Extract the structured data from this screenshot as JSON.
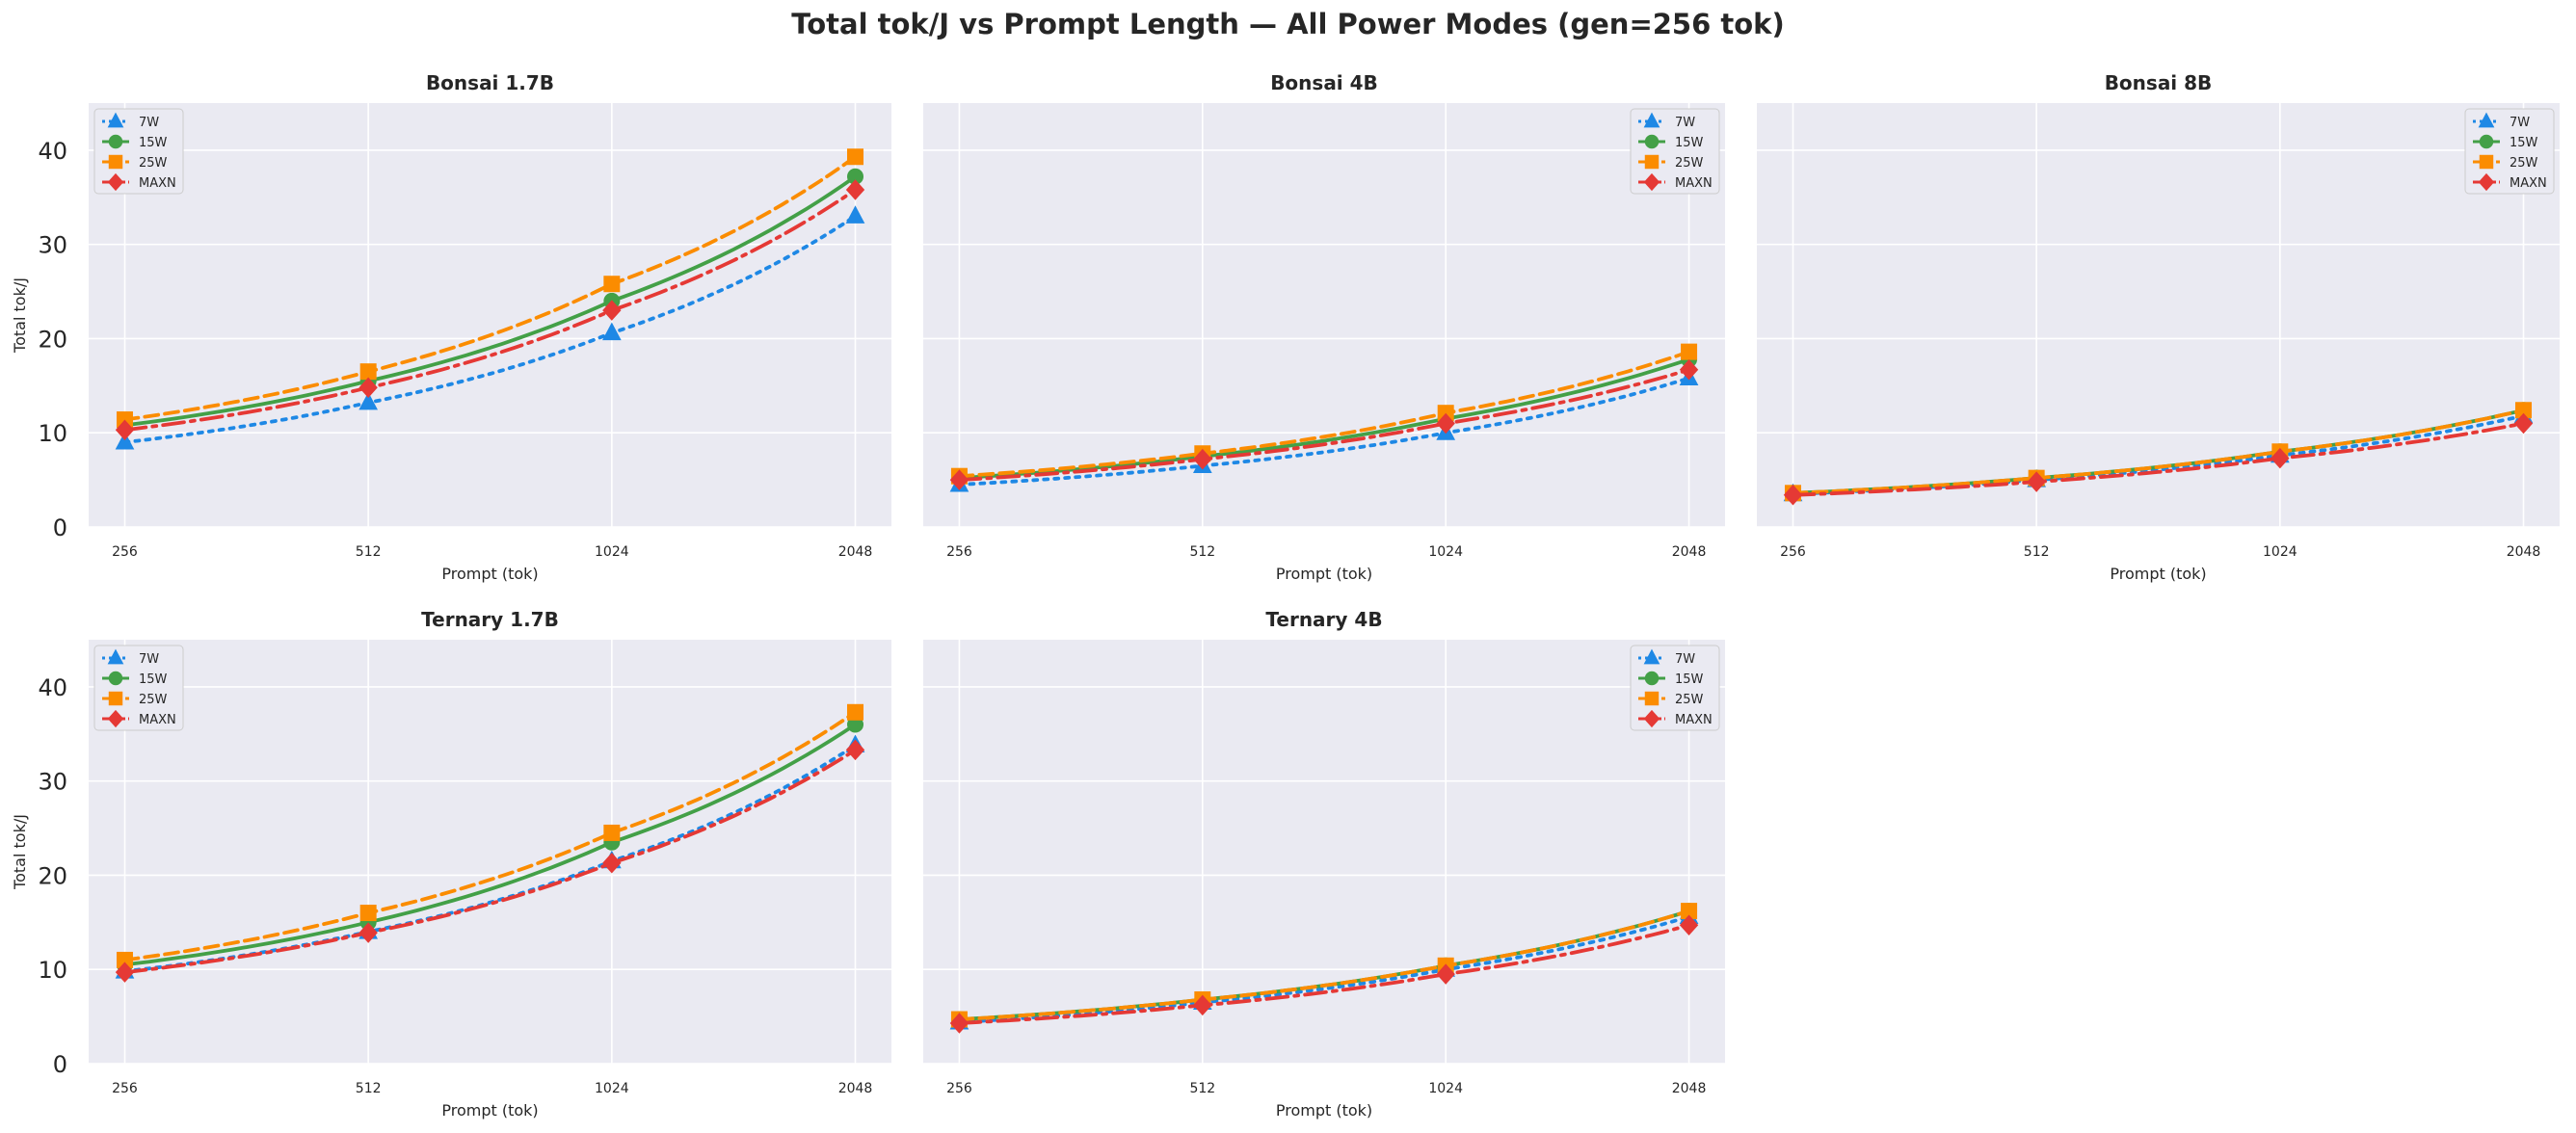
{
  "figure": {
    "title": "Total tok/J vs Prompt Length — All Power Modes (gen=256 tok)"
  },
  "series_styles": [
    {
      "name": "7W",
      "color": "#1e88e5",
      "marker": "triangle",
      "dash": "4,7"
    },
    {
      "name": "15W",
      "color": "#43a047",
      "marker": "circle",
      "dash": ""
    },
    {
      "name": "25W",
      "color": "#fb8c00",
      "marker": "square",
      "dash": "14,7"
    },
    {
      "name": "MAXN",
      "color": "#e53935",
      "marker": "diamond",
      "dash": "22,7,4,7"
    }
  ],
  "chart_data": [
    {
      "type": "line",
      "title": "Bonsai 1.7B",
      "xlabel": "Prompt (tok)",
      "ylabel": "Total tok/J",
      "x": [
        256,
        512,
        1024,
        2048
      ],
      "ylim": [
        0,
        45
      ],
      "yticks": [
        0,
        10,
        20,
        30,
        40
      ],
      "grid": true,
      "legend": "top-left",
      "series": [
        {
          "name": "7W",
          "values": [
            9.0,
            13.2,
            20.6,
            33.0
          ]
        },
        {
          "name": "15W",
          "values": [
            10.8,
            15.5,
            24.0,
            37.2
          ]
        },
        {
          "name": "25W",
          "values": [
            11.4,
            16.5,
            25.8,
            39.3
          ]
        },
        {
          "name": "MAXN",
          "values": [
            10.3,
            14.8,
            23.0,
            35.8
          ]
        }
      ]
    },
    {
      "type": "line",
      "title": "Bonsai 4B",
      "xlabel": "Prompt (tok)",
      "ylabel": "",
      "x": [
        256,
        512,
        1024,
        2048
      ],
      "ylim": [
        0,
        45
      ],
      "yticks": [
        0,
        10,
        20,
        30,
        40
      ],
      "grid": true,
      "legend": "top-right",
      "series": [
        {
          "name": "7W",
          "values": [
            4.5,
            6.5,
            10.0,
            15.8
          ]
        },
        {
          "name": "15W",
          "values": [
            5.2,
            7.5,
            11.5,
            17.8
          ]
        },
        {
          "name": "25W",
          "values": [
            5.4,
            7.8,
            12.1,
            18.6
          ]
        },
        {
          "name": "MAXN",
          "values": [
            5.0,
            7.2,
            11.0,
            16.7
          ]
        }
      ]
    },
    {
      "type": "line",
      "title": "Bonsai 8B",
      "xlabel": "Prompt (tok)",
      "ylabel": "",
      "x": [
        256,
        512,
        1024,
        2048
      ],
      "ylim": [
        0,
        45
      ],
      "yticks": [
        0,
        10,
        20,
        30,
        40
      ],
      "grid": true,
      "legend": "top-right",
      "series": [
        {
          "name": "7W",
          "values": [
            3.5,
            5.0,
            7.6,
            11.8
          ]
        },
        {
          "name": "15W",
          "values": [
            3.6,
            5.2,
            8.0,
            12.4
          ]
        },
        {
          "name": "25W",
          "values": [
            3.6,
            5.2,
            8.0,
            12.4
          ]
        },
        {
          "name": "MAXN",
          "values": [
            3.4,
            4.8,
            7.3,
            11.0
          ]
        }
      ]
    },
    {
      "type": "line",
      "title": "Ternary 1.7B",
      "xlabel": "Prompt (tok)",
      "ylabel": "Total tok/J",
      "x": [
        256,
        512,
        1024,
        2048
      ],
      "ylim": [
        0,
        45
      ],
      "yticks": [
        0,
        10,
        20,
        30,
        40
      ],
      "grid": true,
      "legend": "top-left",
      "series": [
        {
          "name": "7W",
          "values": [
            9.8,
            14.0,
            21.5,
            33.8
          ]
        },
        {
          "name": "15W",
          "values": [
            10.5,
            15.0,
            23.5,
            36.0
          ]
        },
        {
          "name": "25W",
          "values": [
            11.0,
            16.0,
            24.5,
            37.3
          ]
        },
        {
          "name": "MAXN",
          "values": [
            9.7,
            13.9,
            21.3,
            33.3
          ]
        }
      ]
    },
    {
      "type": "line",
      "title": "Ternary 4B",
      "xlabel": "Prompt (tok)",
      "ylabel": "",
      "x": [
        256,
        512,
        1024,
        2048
      ],
      "ylim": [
        0,
        45
      ],
      "yticks": [
        0,
        10,
        20,
        30,
        40
      ],
      "grid": true,
      "legend": "top-right",
      "series": [
        {
          "name": "7W",
          "values": [
            4.4,
            6.5,
            10.0,
            15.6
          ]
        },
        {
          "name": "15W",
          "values": [
            4.7,
            6.8,
            10.4,
            16.2
          ]
        },
        {
          "name": "25W",
          "values": [
            4.7,
            6.8,
            10.4,
            16.2
          ]
        },
        {
          "name": "MAXN",
          "values": [
            4.3,
            6.2,
            9.5,
            14.7
          ]
        }
      ]
    }
  ]
}
